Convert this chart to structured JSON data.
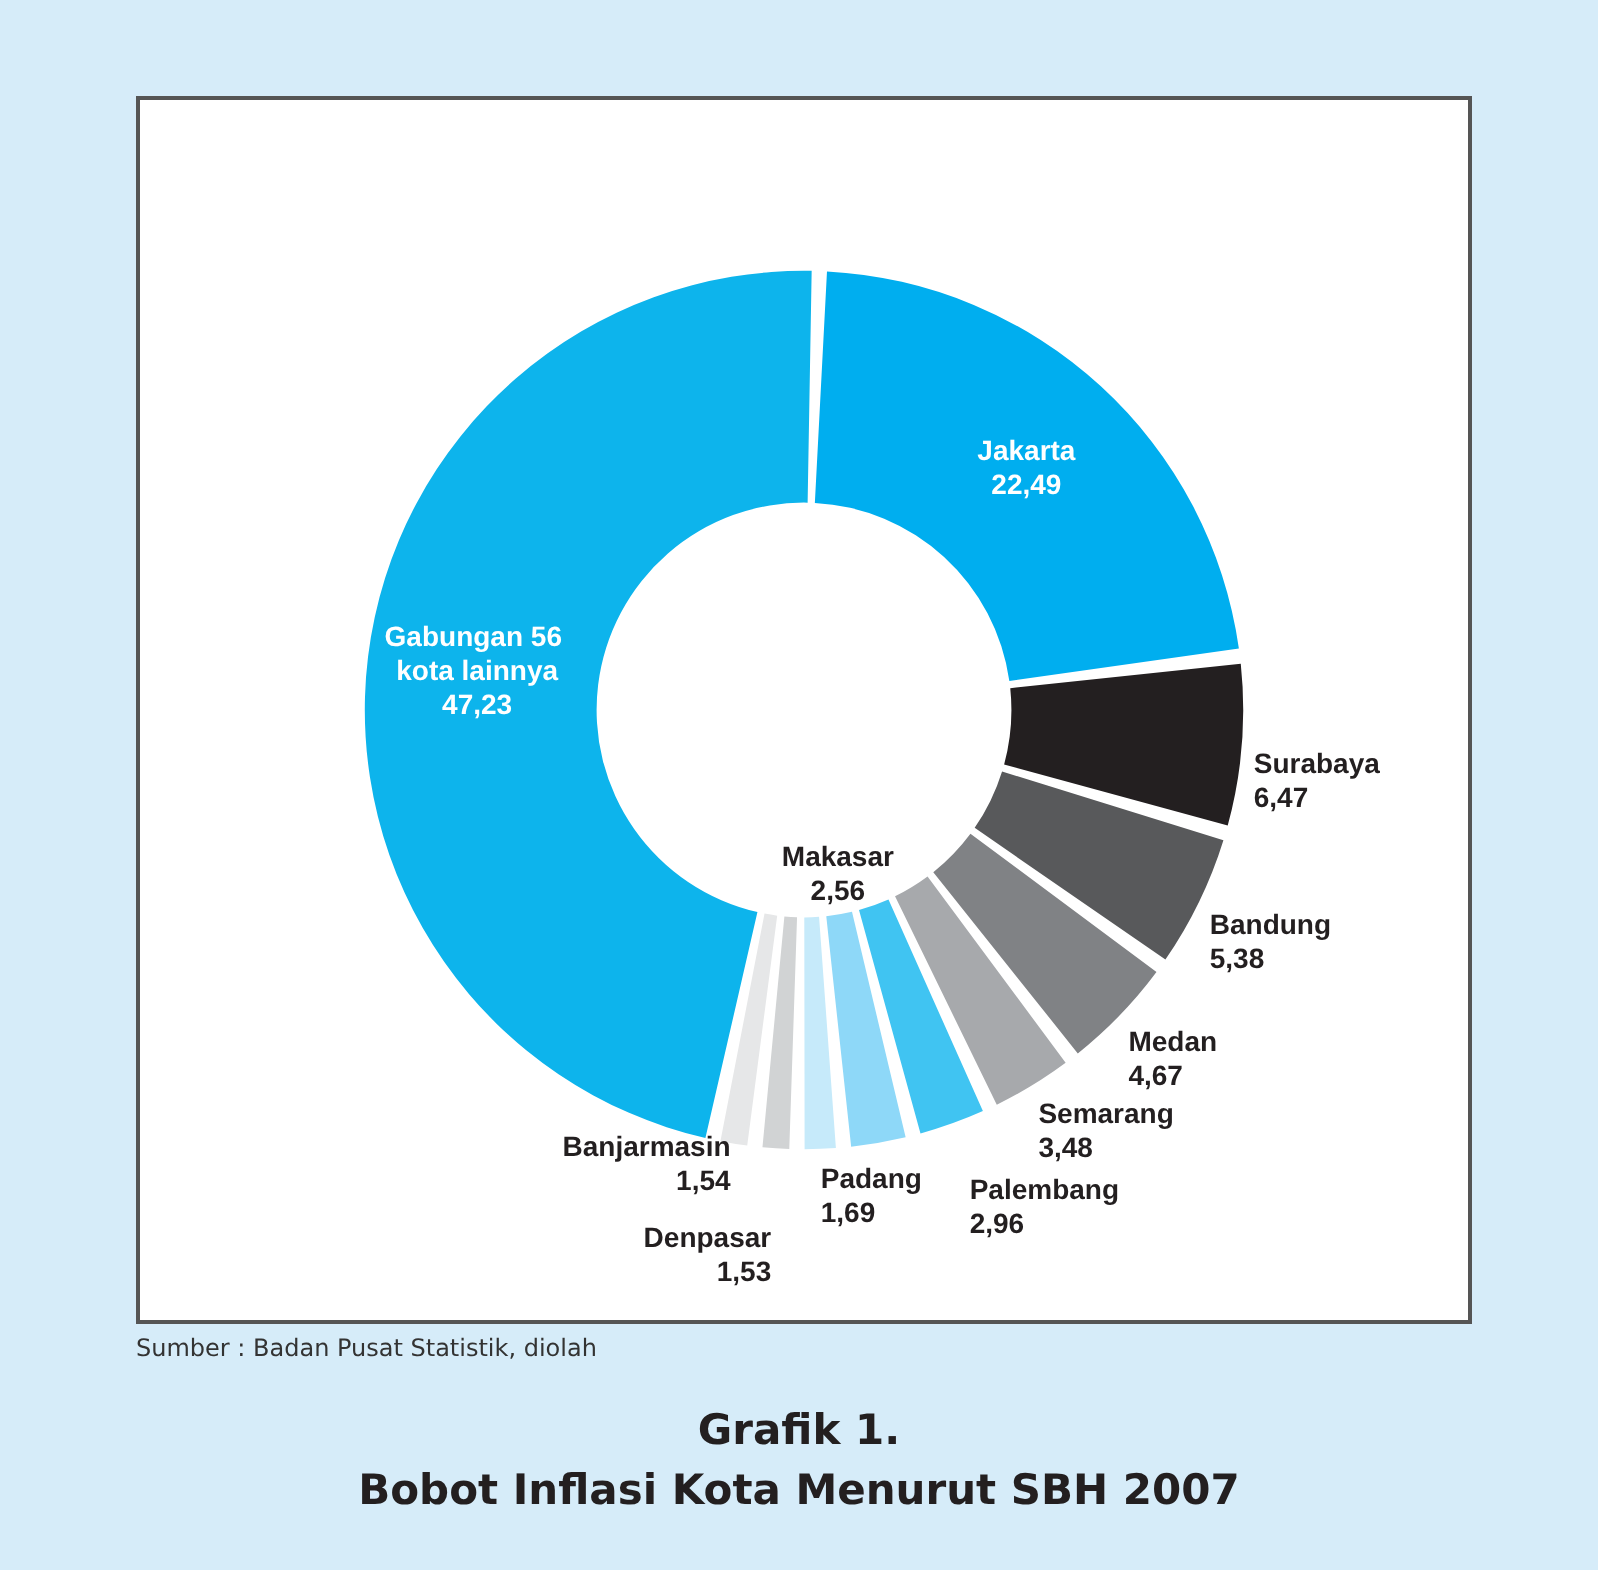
{
  "chart_data": {
    "type": "donut",
    "title": "Grafik 1.",
    "subtitle": "Bobot Inflasi Kota Menurut SBH 2007",
    "annotations": [
      "Sumber : Badan Pusat Statistik, diolah"
    ],
    "categories": [
      "Jakarta",
      "Surabaya",
      "Bandung",
      "Medan",
      "Semarang",
      "Palembang",
      "Makasar",
      "Padang",
      "Denpasar",
      "Banjarmasin",
      "Gabungan 56 kota lainnya"
    ],
    "values": [
      22.49,
      6.47,
      5.38,
      4.67,
      3.48,
      2.96,
      2.56,
      1.69,
      1.53,
      1.54,
      47.23
    ],
    "colors": [
      "#00aeef",
      "#231f20",
      "#58595b",
      "#808285",
      "#a7a9ac",
      "#40c4f2",
      "#8ed8f8",
      "#c6eafa",
      "#d1d3d4",
      "#e6e7e8",
      "#0db4ec"
    ],
    "value_labels": [
      "22,49",
      "6,47",
      "5,38",
      "4,67",
      "3,48",
      "2,96",
      "2,56",
      "1,69",
      "1,53",
      "1,54",
      "47,23"
    ],
    "legend": false
  }
}
